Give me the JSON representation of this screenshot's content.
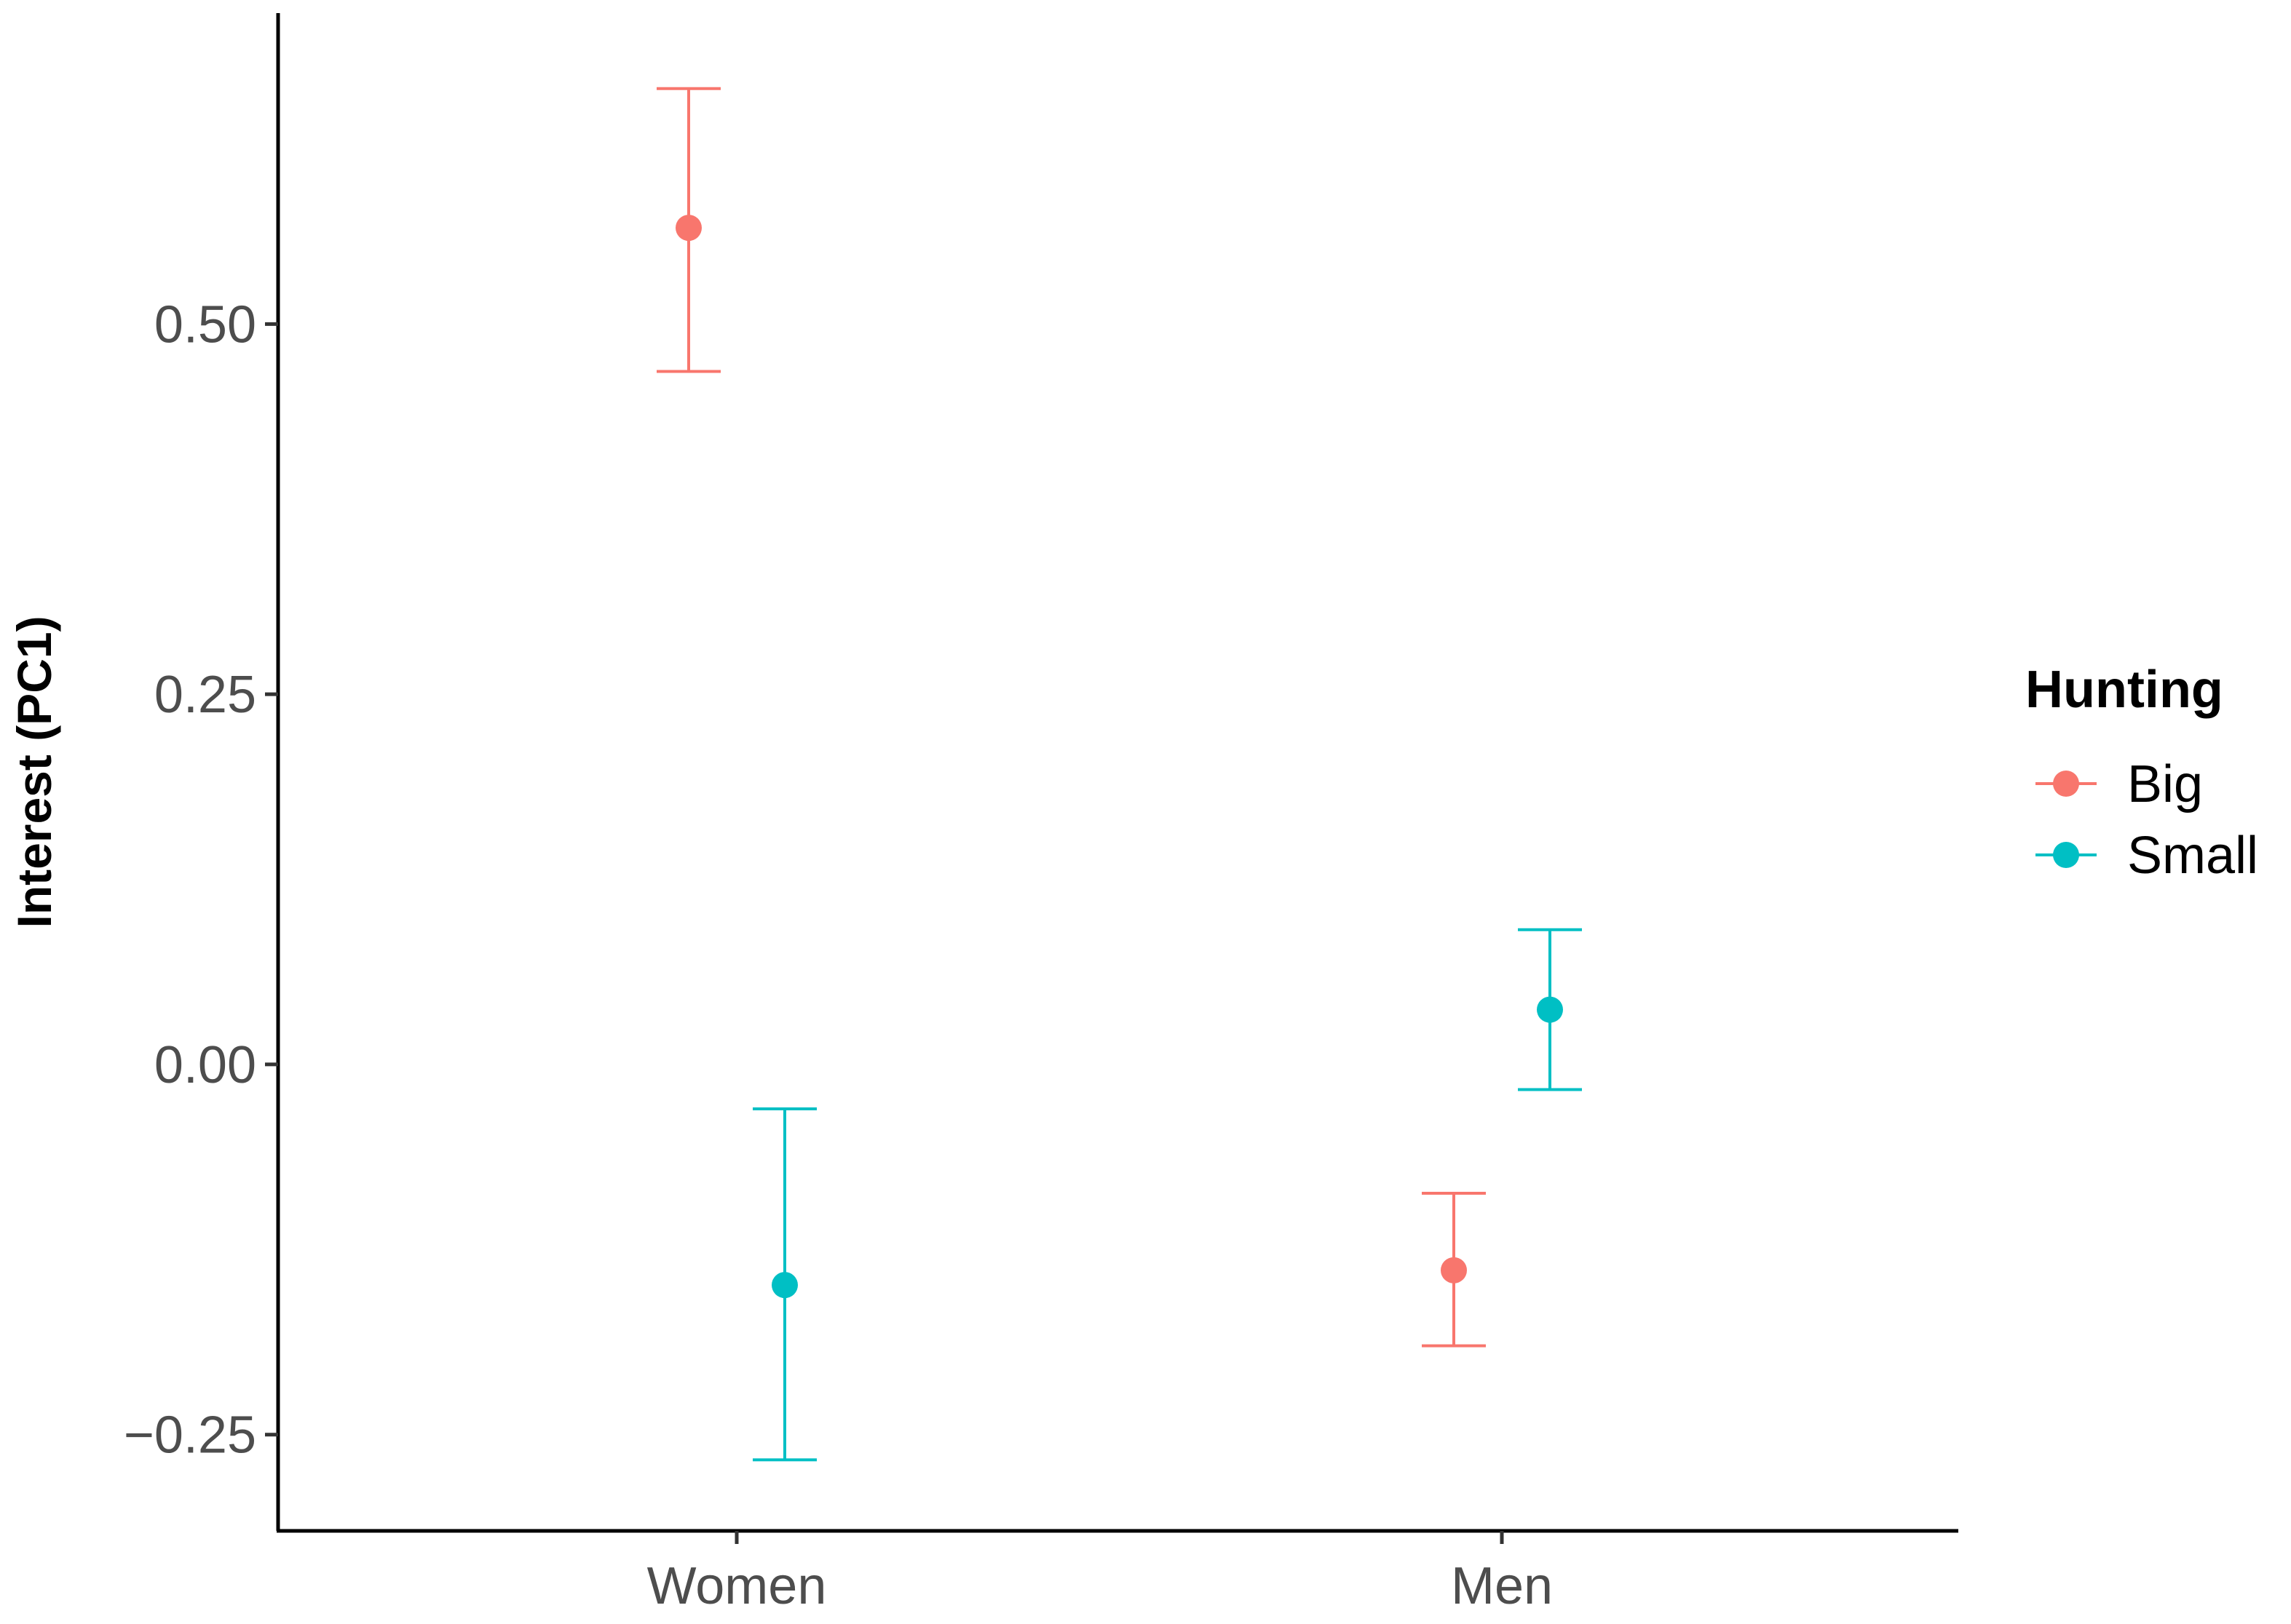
{
  "chart_data": {
    "type": "scatter",
    "ylabel": "Interest (PC1)",
    "xlabel": "",
    "categories": [
      "Women",
      "Men"
    ],
    "ylim": [
      -0.315,
      0.71
    ],
    "yticks": [
      -0.25,
      0.0,
      0.25,
      0.5
    ],
    "ytick_labels": [
      "−0.25",
      "0.00",
      "0.25",
      "0.50"
    ],
    "grid": false,
    "legend": {
      "title": "Hunting",
      "placement": "right",
      "entries": [
        "Big",
        "Small"
      ]
    },
    "series": [
      {
        "name": "Big",
        "color": "#F8766D",
        "points": [
          {
            "category": "Women",
            "y": 0.565,
            "ymin": 0.468,
            "ymax": 0.659
          },
          {
            "category": "Men",
            "y": -0.139,
            "ymin": -0.19,
            "ymax": -0.087
          }
        ]
      },
      {
        "name": "Small",
        "color": "#00BFC4",
        "points": [
          {
            "category": "Women",
            "y": -0.149,
            "ymin": -0.267,
            "ymax": -0.03
          },
          {
            "category": "Men",
            "y": 0.037,
            "ymin": -0.017,
            "ymax": 0.091
          }
        ]
      }
    ]
  }
}
